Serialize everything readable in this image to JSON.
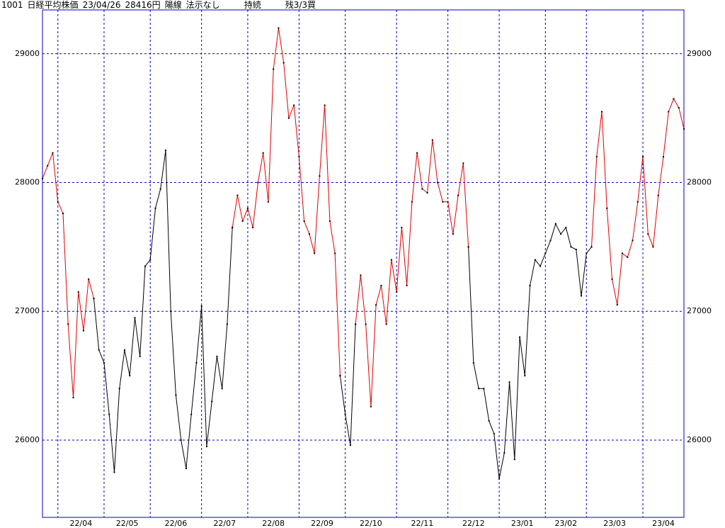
{
  "chart_data": {
    "type": "line",
    "header": [
      "1001",
      "日経平均株価",
      "23/04/26",
      "28416円",
      "陽線",
      "法示なし",
      "持続",
      "残3/3買"
    ],
    "xlim": [
      0,
      125
    ],
    "xticks": [
      {
        "value": 3,
        "label": "22/04"
      },
      {
        "value": 12,
        "label": "22/05"
      },
      {
        "value": 21,
        "label": "22/06"
      },
      {
        "value": 31,
        "label": "22/07"
      },
      {
        "value": 40,
        "label": "22/08"
      },
      {
        "value": 50,
        "label": "22/09"
      },
      {
        "value": 59,
        "label": "22/10"
      },
      {
        "value": 69,
        "label": "22/11"
      },
      {
        "value": 79,
        "label": "22/12"
      },
      {
        "value": 89,
        "label": "23/01"
      },
      {
        "value": 98,
        "label": "23/02"
      },
      {
        "value": 106,
        "label": "23/03"
      },
      {
        "value": 117,
        "label": "23/04"
      }
    ],
    "ylim": [
      25400,
      29340
    ],
    "yticks": [
      26000,
      27000,
      28000,
      29000
    ],
    "grid": true,
    "series": [
      {
        "color": "#e00000",
        "values": [
          28030,
          28130,
          28230,
          27850,
          27760,
          26900,
          26330,
          27150,
          26850,
          27250,
          27100,
          null,
          null,
          null,
          null,
          null,
          null,
          null,
          null,
          null,
          null,
          null,
          null,
          null,
          null,
          null,
          null,
          null,
          null,
          null,
          null,
          null,
          null,
          null,
          null,
          null,
          null,
          27650,
          27900,
          27700,
          27800,
          27650,
          28000,
          28230,
          27850,
          28880,
          29200,
          28930,
          28500,
          28600,
          28200,
          27700,
          27600,
          27450,
          28050,
          28600,
          27700,
          27450,
          26500,
          null,
          null,
          26900,
          27280,
          26900,
          26260,
          27050,
          27200,
          26900,
          27400,
          27150,
          27650,
          27200,
          27850,
          28230,
          27950,
          27920,
          28330,
          28000,
          27850,
          27850,
          27600,
          27900,
          28150,
          27500,
          null,
          null,
          null,
          null,
          null,
          null,
          null,
          null,
          null,
          null,
          null,
          null,
          null,
          null,
          null,
          null,
          null,
          null,
          null,
          null,
          null,
          null,
          null,
          27500,
          28200,
          28550,
          27800,
          27250,
          27050,
          27450,
          27420,
          27550,
          27850,
          28200,
          27600,
          27500,
          27900,
          28200,
          28550,
          28650,
          28580,
          28416
        ]
      },
      {
        "color": "#000000",
        "values": [
          null,
          null,
          null,
          null,
          null,
          null,
          null,
          null,
          null,
          null,
          27100,
          26700,
          26600,
          26200,
          25750,
          26400,
          26700,
          26500,
          26950,
          26650,
          27350,
          27400,
          27800,
          27950,
          28250,
          27000,
          26350,
          26000,
          25780,
          26200,
          26600,
          27040,
          25950,
          26300,
          26650,
          26400,
          26900,
          27650,
          null,
          null,
          null,
          null,
          null,
          null,
          null,
          null,
          null,
          null,
          null,
          null,
          null,
          null,
          null,
          null,
          null,
          null,
          null,
          null,
          26500,
          26200,
          25960,
          26900,
          null,
          null,
          null,
          null,
          null,
          null,
          null,
          null,
          null,
          null,
          null,
          null,
          null,
          null,
          null,
          null,
          null,
          null,
          null,
          null,
          null,
          27500,
          26600,
          26400,
          26400,
          26150,
          26050,
          25700,
          25900,
          26450,
          25850,
          26800,
          26500,
          27200,
          27400,
          27350,
          27450,
          27550,
          27680,
          27600,
          27650,
          27500,
          27480,
          27120,
          27450,
          27500,
          null,
          null,
          null,
          null,
          null,
          null,
          null,
          null,
          null,
          null,
          null,
          null,
          null,
          null,
          null,
          null,
          null,
          null
        ]
      }
    ]
  }
}
